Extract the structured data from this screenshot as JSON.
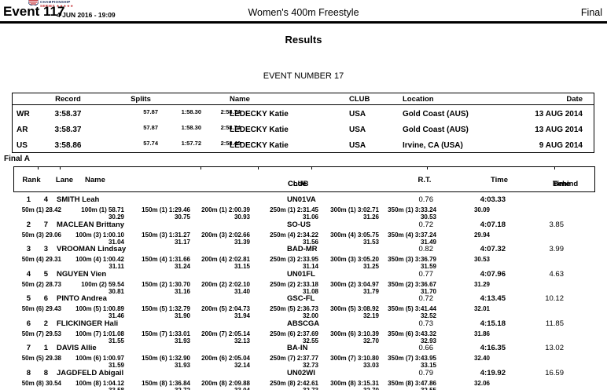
{
  "header": {
    "event_label": "Event 117",
    "datetime": "4 JUN 2016 - 19:09",
    "title": "Women's 400m Freestyle",
    "stage": "Final",
    "logo_line1": "CHAMPIONSHIP",
    "logo_line2": "SERIES ★★★★★"
  },
  "results_title": "Results",
  "event_number": "EVENT NUMBER 17",
  "records": {
    "headers": {
      "record": "Record",
      "splits": "Splits",
      "name": "Name",
      "club": "CLUB",
      "location": "Location",
      "date": "Date"
    },
    "rows": [
      {
        "type": "WR",
        "time": "3:58.37",
        "s1": "57.87",
        "s2": "1:58.30",
        "s3": "2:58.74",
        "name": "LEDECKY Katie",
        "club": "USA",
        "location": "Gold Coast (AUS)",
        "date": "13 AUG 2014"
      },
      {
        "type": "AR",
        "time": "3:58.37",
        "s1": "57.87",
        "s2": "1:58.30",
        "s3": "2:58.74",
        "name": "LEDECKY Katie",
        "club": "USA",
        "location": "Gold Coast (AUS)",
        "date": "13 AUG 2014"
      },
      {
        "type": "US",
        "time": "3:58.86",
        "s1": "57.74",
        "s2": "1:57.72",
        "s3": "2:58.40",
        "name": "LEDECKY Katie",
        "club": "USA",
        "location": "Irvine, CA (USA)",
        "date": "9 AUG 2014"
      }
    ]
  },
  "final_heat_label": "Final A",
  "results": {
    "headers": {
      "rank": "Rank",
      "lane": "Lane",
      "name": "Name",
      "club1": "CLUB",
      "club2": "Code",
      "rt": "R.T.",
      "time": "Time",
      "behind1": "Time",
      "behind2": "Behind"
    },
    "rows": [
      {
        "rank": "1",
        "lane": "4",
        "name": "SMITH Leah",
        "club": "UN01VA",
        "rt": "0.76",
        "time": "4:03.33",
        "behind": "",
        "final_lap": "30.09",
        "splits": [
          {
            "t": "50m (1) 28.42",
            "l": ""
          },
          {
            "t": "100m (1) 58.71",
            "l": "30.29"
          },
          {
            "t": "150m (1) 1:29.46",
            "l": "30.75"
          },
          {
            "t": "200m (1) 2:00.39",
            "l": "30.93"
          },
          {
            "t": "250m (1) 2:31.45",
            "l": "31.06"
          },
          {
            "t": "300m (1) 3:02.71",
            "l": "31.26"
          },
          {
            "t": "350m (1) 3:33.24",
            "l": "30.53"
          }
        ]
      },
      {
        "rank": "2",
        "lane": "7",
        "name": "MACLEAN Brittany",
        "club": "SO-US",
        "rt": "0.72",
        "time": "4:07.18",
        "behind": "3.85",
        "final_lap": "29.94",
        "splits": [
          {
            "t": "50m (3) 29.06",
            "l": ""
          },
          {
            "t": "100m (3) 1:00.10",
            "l": "31.04"
          },
          {
            "t": "150m (3) 1:31.27",
            "l": "31.17"
          },
          {
            "t": "200m (3) 2:02.66",
            "l": "31.39"
          },
          {
            "t": "250m (4) 2:34.22",
            "l": "31.56"
          },
          {
            "t": "300m (4) 3:05.75",
            "l": "31.53"
          },
          {
            "t": "350m (4) 3:37.24",
            "l": "31.49"
          }
        ]
      },
      {
        "rank": "3",
        "lane": "3",
        "name": "VROOMAN Lindsay",
        "club": "BAD-MR",
        "rt": "0.82",
        "time": "4:07.32",
        "behind": "3.99",
        "final_lap": "30.53",
        "splits": [
          {
            "t": "50m (4) 29.31",
            "l": ""
          },
          {
            "t": "100m (4) 1:00.42",
            "l": "31.11"
          },
          {
            "t": "150m (4) 1:31.66",
            "l": "31.24"
          },
          {
            "t": "200m (4) 2:02.81",
            "l": "31.15"
          },
          {
            "t": "250m (3) 2:33.95",
            "l": "31.14"
          },
          {
            "t": "300m (3) 3:05.20",
            "l": "31.25"
          },
          {
            "t": "350m (3) 3:36.79",
            "l": "31.59"
          }
        ]
      },
      {
        "rank": "4",
        "lane": "5",
        "name": "NGUYEN Vien",
        "club": "UN01FL",
        "rt": "0.77",
        "time": "4:07.96",
        "behind": "4.63",
        "final_lap": "31.29",
        "splits": [
          {
            "t": "50m (2) 28.73",
            "l": ""
          },
          {
            "t": "100m (2) 59.54",
            "l": "30.81"
          },
          {
            "t": "150m (2) 1:30.70",
            "l": "31.16"
          },
          {
            "t": "200m (2) 2:02.10",
            "l": "31.40"
          },
          {
            "t": "250m (2) 2:33.18",
            "l": "31.08"
          },
          {
            "t": "300m (2) 3:04.97",
            "l": "31.79"
          },
          {
            "t": "350m (2) 3:36.67",
            "l": "31.70"
          }
        ]
      },
      {
        "rank": "5",
        "lane": "6",
        "name": "PINTO Andrea",
        "club": "GSC-FL",
        "rt": "0.72",
        "time": "4:13.45",
        "behind": "10.12",
        "final_lap": "32.01",
        "splits": [
          {
            "t": "50m (6) 29.43",
            "l": ""
          },
          {
            "t": "100m (5) 1:00.89",
            "l": "31.46"
          },
          {
            "t": "150m (5) 1:32.79",
            "l": "31.90"
          },
          {
            "t": "200m (5) 2:04.73",
            "l": "31.94"
          },
          {
            "t": "250m (5) 2:36.73",
            "l": "32.00"
          },
          {
            "t": "300m (5) 3:08.92",
            "l": "32.19"
          },
          {
            "t": "350m (5) 3:41.44",
            "l": "32.52"
          }
        ]
      },
      {
        "rank": "6",
        "lane": "2",
        "name": "FLICKINGER Hali",
        "club": "ABSCGA",
        "rt": "0.73",
        "time": "4:15.18",
        "behind": "11.85",
        "final_lap": "31.86",
        "splits": [
          {
            "t": "50m (7) 29.53",
            "l": ""
          },
          {
            "t": "100m (7) 1:01.08",
            "l": "31.55"
          },
          {
            "t": "150m (7) 1:33.01",
            "l": "31.93"
          },
          {
            "t": "200m (7) 2:05.14",
            "l": "32.13"
          },
          {
            "t": "250m (6) 2:37.69",
            "l": "32.55"
          },
          {
            "t": "300m (6) 3:10.39",
            "l": "32.70"
          },
          {
            "t": "350m (6) 3:43.32",
            "l": "32.93"
          }
        ]
      },
      {
        "rank": "7",
        "lane": "1",
        "name": "DAVIS Allie",
        "club": "BA-IN",
        "rt": "0.66",
        "time": "4:16.35",
        "behind": "13.02",
        "final_lap": "32.40",
        "splits": [
          {
            "t": "50m (5) 29.38",
            "l": ""
          },
          {
            "t": "100m (6) 1:00.97",
            "l": "31.59"
          },
          {
            "t": "150m (6) 1:32.90",
            "l": "31.93"
          },
          {
            "t": "200m (6) 2:05.04",
            "l": "32.14"
          },
          {
            "t": "250m (7) 2:37.77",
            "l": "32.73"
          },
          {
            "t": "300m (7) 3:10.80",
            "l": "33.03"
          },
          {
            "t": "350m (7) 3:43.95",
            "l": "33.15"
          }
        ]
      },
      {
        "rank": "8",
        "lane": "8",
        "name": "JAGDFELD Abigail",
        "club": "UN02WI",
        "rt": "0.79",
        "time": "4:19.92",
        "behind": "16.59",
        "final_lap": "32.06",
        "splits": [
          {
            "t": "50m (8) 30.54",
            "l": ""
          },
          {
            "t": "100m (8) 1:04.12",
            "l": "33.58"
          },
          {
            "t": "150m (8) 1:36.84",
            "l": "32.72"
          },
          {
            "t": "200m (8) 2:09.88",
            "l": "33.04"
          },
          {
            "t": "250m (8) 2:42.61",
            "l": "32.73"
          },
          {
            "t": "300m (8) 3:15.31",
            "l": "32.70"
          },
          {
            "t": "350m (8) 3:47.86",
            "l": "32.55"
          }
        ]
      }
    ]
  }
}
